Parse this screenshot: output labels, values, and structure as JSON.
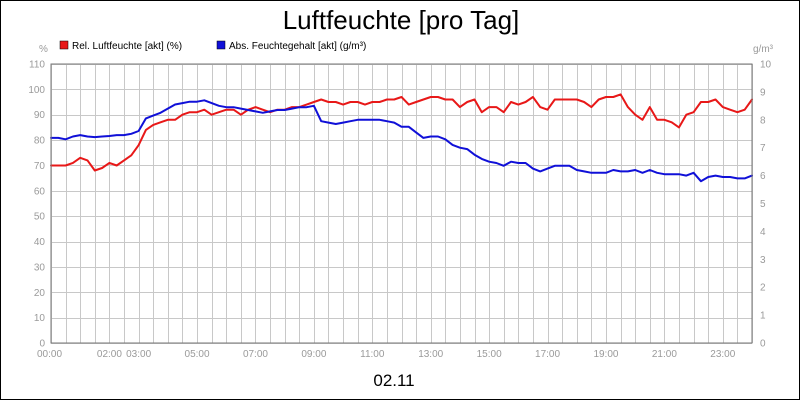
{
  "chart_data": {
    "type": "line",
    "title": "Luftfeuchte [pro Tag]",
    "date_label": "02.11",
    "y_left": {
      "unit": "%",
      "min": 0,
      "max": 110,
      "ticks": [
        "0",
        "10",
        "20",
        "30",
        "40",
        "50",
        "60",
        "70",
        "80",
        "90",
        "100",
        "110"
      ]
    },
    "y_right": {
      "unit": "g/m³",
      "min": 0,
      "max": 10,
      "ticks": [
        "0",
        "1",
        "2",
        "3",
        "4",
        "5",
        "6",
        "7",
        "8",
        "9",
        "10"
      ]
    },
    "x": {
      "min_hour": 0,
      "max_hour": 24,
      "tick_labels": [
        {
          "label": "00:00",
          "hour": 0
        },
        {
          "label": "02:00",
          "hour": 2
        },
        {
          "label": "03:00",
          "hour": 3
        },
        {
          "label": "05:00",
          "hour": 5
        },
        {
          "label": "07:00",
          "hour": 7
        },
        {
          "label": "09:00",
          "hour": 9
        },
        {
          "label": "11:00",
          "hour": 11
        },
        {
          "label": "13:00",
          "hour": 13
        },
        {
          "label": "15:00",
          "hour": 15
        },
        {
          "label": "17:00",
          "hour": 17
        },
        {
          "label": "19:00",
          "hour": 19
        },
        {
          "label": "21:00",
          "hour": 21
        },
        {
          "label": "23:00",
          "hour": 23
        }
      ]
    },
    "grid": true,
    "legend_position": "top-left",
    "series": [
      {
        "name": "Rel. Luftfeuchte [akt] (%)",
        "axis": "left",
        "color": "#e81818",
        "points": [
          [
            0.0,
            70
          ],
          [
            0.25,
            70
          ],
          [
            0.5,
            70
          ],
          [
            0.75,
            71
          ],
          [
            1.0,
            73
          ],
          [
            1.25,
            72
          ],
          [
            1.5,
            68
          ],
          [
            1.75,
            69
          ],
          [
            2.0,
            71
          ],
          [
            2.25,
            70
          ],
          [
            2.5,
            72
          ],
          [
            2.75,
            74
          ],
          [
            3.0,
            78
          ],
          [
            3.25,
            84
          ],
          [
            3.5,
            86
          ],
          [
            3.75,
            87
          ],
          [
            4.0,
            88
          ],
          [
            4.25,
            88
          ],
          [
            4.5,
            90
          ],
          [
            4.75,
            91
          ],
          [
            5.0,
            91
          ],
          [
            5.25,
            92
          ],
          [
            5.5,
            90
          ],
          [
            5.75,
            91
          ],
          [
            6.0,
            92
          ],
          [
            6.25,
            92
          ],
          [
            6.5,
            90
          ],
          [
            6.75,
            92
          ],
          [
            7.0,
            93
          ],
          [
            7.25,
            92
          ],
          [
            7.5,
            91
          ],
          [
            7.75,
            92
          ],
          [
            8.0,
            92
          ],
          [
            8.25,
            93
          ],
          [
            8.5,
            93
          ],
          [
            8.75,
            94
          ],
          [
            9.0,
            95
          ],
          [
            9.25,
            96
          ],
          [
            9.5,
            95
          ],
          [
            9.75,
            95
          ],
          [
            10.0,
            94
          ],
          [
            10.25,
            95
          ],
          [
            10.5,
            95
          ],
          [
            10.75,
            94
          ],
          [
            11.0,
            95
          ],
          [
            11.25,
            95
          ],
          [
            11.5,
            96
          ],
          [
            11.75,
            96
          ],
          [
            12.0,
            97
          ],
          [
            12.25,
            94
          ],
          [
            12.5,
            95
          ],
          [
            12.75,
            96
          ],
          [
            13.0,
            97
          ],
          [
            13.25,
            97
          ],
          [
            13.5,
            96
          ],
          [
            13.75,
            96
          ],
          [
            14.0,
            93
          ],
          [
            14.25,
            95
          ],
          [
            14.5,
            96
          ],
          [
            14.75,
            91
          ],
          [
            15.0,
            93
          ],
          [
            15.25,
            93
          ],
          [
            15.5,
            91
          ],
          [
            15.75,
            95
          ],
          [
            16.0,
            94
          ],
          [
            16.25,
            95
          ],
          [
            16.5,
            97
          ],
          [
            16.75,
            93
          ],
          [
            17.0,
            92
          ],
          [
            17.25,
            96
          ],
          [
            17.5,
            96
          ],
          [
            17.75,
            96
          ],
          [
            18.0,
            96
          ],
          [
            18.25,
            95
          ],
          [
            18.5,
            93
          ],
          [
            18.75,
            96
          ],
          [
            19.0,
            97
          ],
          [
            19.25,
            97
          ],
          [
            19.5,
            98
          ],
          [
            19.75,
            93
          ],
          [
            20.0,
            90
          ],
          [
            20.25,
            88
          ],
          [
            20.5,
            93
          ],
          [
            20.75,
            88
          ],
          [
            21.0,
            88
          ],
          [
            21.25,
            87
          ],
          [
            21.5,
            85
          ],
          [
            21.75,
            90
          ],
          [
            22.0,
            91
          ],
          [
            22.25,
            95
          ],
          [
            22.5,
            95
          ],
          [
            22.75,
            96
          ],
          [
            23.0,
            93
          ],
          [
            23.25,
            92
          ],
          [
            23.5,
            91
          ],
          [
            23.75,
            92
          ],
          [
            24.0,
            96
          ]
        ]
      },
      {
        "name": "Abs. Feuchtegehalt [akt] (g/m³)",
        "axis": "right",
        "color": "#1010d8",
        "points": [
          [
            0.0,
            7.35
          ],
          [
            0.25,
            7.35
          ],
          [
            0.5,
            7.3
          ],
          [
            0.75,
            7.4
          ],
          [
            1.0,
            7.45
          ],
          [
            1.25,
            7.4
          ],
          [
            1.5,
            7.38
          ],
          [
            1.75,
            7.4
          ],
          [
            2.0,
            7.42
          ],
          [
            2.25,
            7.45
          ],
          [
            2.5,
            7.45
          ],
          [
            2.75,
            7.5
          ],
          [
            3.0,
            7.6
          ],
          [
            3.25,
            8.05
          ],
          [
            3.5,
            8.15
          ],
          [
            3.75,
            8.25
          ],
          [
            4.0,
            8.4
          ],
          [
            4.25,
            8.55
          ],
          [
            4.5,
            8.6
          ],
          [
            4.75,
            8.65
          ],
          [
            5.0,
            8.65
          ],
          [
            5.25,
            8.7
          ],
          [
            5.5,
            8.6
          ],
          [
            5.75,
            8.5
          ],
          [
            6.0,
            8.45
          ],
          [
            6.25,
            8.45
          ],
          [
            6.5,
            8.4
          ],
          [
            6.75,
            8.35
          ],
          [
            7.0,
            8.3
          ],
          [
            7.25,
            8.25
          ],
          [
            7.5,
            8.3
          ],
          [
            7.75,
            8.35
          ],
          [
            8.0,
            8.35
          ],
          [
            8.25,
            8.4
          ],
          [
            8.5,
            8.45
          ],
          [
            8.75,
            8.45
          ],
          [
            9.0,
            8.5
          ],
          [
            9.25,
            7.95
          ],
          [
            9.5,
            7.9
          ],
          [
            9.75,
            7.85
          ],
          [
            10.0,
            7.9
          ],
          [
            10.25,
            7.95
          ],
          [
            10.5,
            8.0
          ],
          [
            10.75,
            8.0
          ],
          [
            11.0,
            8.0
          ],
          [
            11.25,
            8.0
          ],
          [
            11.5,
            7.95
          ],
          [
            11.75,
            7.9
          ],
          [
            12.0,
            7.75
          ],
          [
            12.25,
            7.75
          ],
          [
            12.5,
            7.55
          ],
          [
            12.75,
            7.35
          ],
          [
            13.0,
            7.4
          ],
          [
            13.25,
            7.4
          ],
          [
            13.5,
            7.3
          ],
          [
            13.75,
            7.1
          ],
          [
            14.0,
            7.0
          ],
          [
            14.25,
            6.95
          ],
          [
            14.5,
            6.75
          ],
          [
            14.75,
            6.6
          ],
          [
            15.0,
            6.5
          ],
          [
            15.25,
            6.45
          ],
          [
            15.5,
            6.35
          ],
          [
            15.75,
            6.5
          ],
          [
            16.0,
            6.45
          ],
          [
            16.25,
            6.45
          ],
          [
            16.5,
            6.25
          ],
          [
            16.75,
            6.15
          ],
          [
            17.0,
            6.25
          ],
          [
            17.25,
            6.35
          ],
          [
            17.5,
            6.35
          ],
          [
            17.75,
            6.35
          ],
          [
            18.0,
            6.2
          ],
          [
            18.25,
            6.15
          ],
          [
            18.5,
            6.1
          ],
          [
            18.75,
            6.1
          ],
          [
            19.0,
            6.1
          ],
          [
            19.25,
            6.2
          ],
          [
            19.5,
            6.15
          ],
          [
            19.75,
            6.15
          ],
          [
            20.0,
            6.2
          ],
          [
            20.25,
            6.1
          ],
          [
            20.5,
            6.2
          ],
          [
            20.75,
            6.1
          ],
          [
            21.0,
            6.05
          ],
          [
            21.25,
            6.05
          ],
          [
            21.5,
            6.05
          ],
          [
            21.75,
            6.0
          ],
          [
            22.0,
            6.1
          ],
          [
            22.25,
            5.8
          ],
          [
            22.5,
            5.95
          ],
          [
            22.75,
            6.0
          ],
          [
            23.0,
            5.95
          ],
          [
            23.25,
            5.95
          ],
          [
            23.5,
            5.9
          ],
          [
            23.75,
            5.9
          ],
          [
            24.0,
            6.0
          ]
        ]
      }
    ]
  }
}
